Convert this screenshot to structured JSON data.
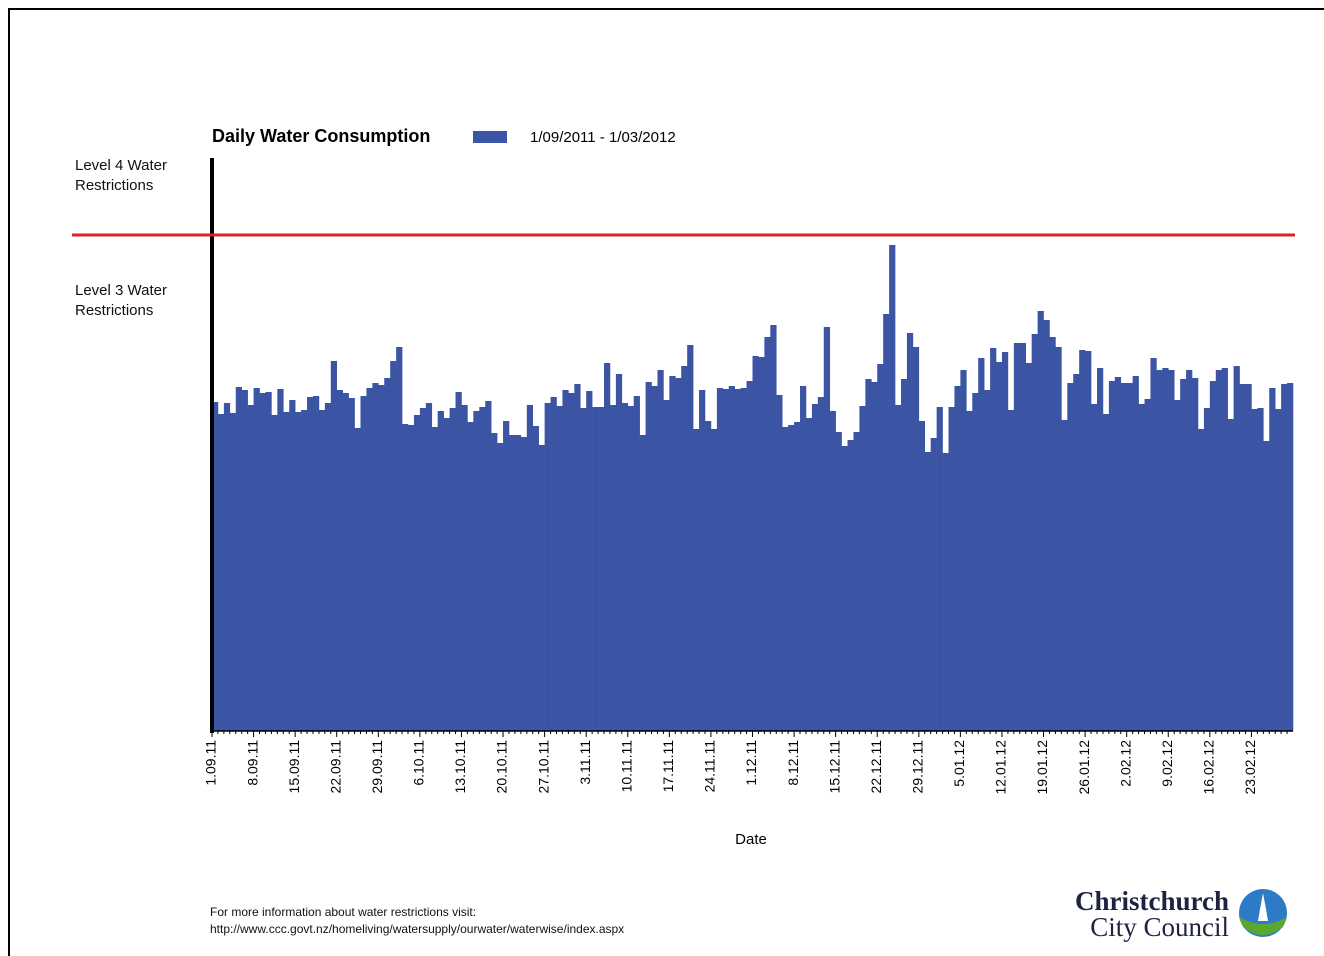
{
  "chart_data": {
    "type": "bar",
    "title": "Daily Water Consumption",
    "x_label": "Date",
    "series": [
      {
        "name": "1/09/2011 - 1/03/2012",
        "color": "#3c54a4",
        "values": [
          329,
          317,
          328,
          318,
          344,
          341,
          326,
          343,
          338,
          339,
          316,
          342,
          319,
          331,
          319,
          321,
          334,
          335,
          321,
          328,
          370,
          341,
          338,
          333,
          303,
          335,
          343,
          348,
          346,
          353,
          370,
          384,
          307,
          306,
          316,
          323,
          328,
          304,
          320,
          313,
          323,
          339,
          326,
          309,
          320,
          324,
          330,
          298,
          288,
          310,
          296,
          296,
          294,
          326,
          305,
          286,
          328,
          334,
          325,
          341,
          338,
          347,
          323,
          340,
          324,
          324,
          368,
          326,
          357,
          328,
          325,
          335,
          296,
          349,
          345,
          361,
          331,
          355,
          353,
          365,
          386,
          302,
          341,
          310,
          302,
          343,
          342,
          345,
          342,
          343,
          350,
          375,
          374,
          394,
          406,
          336,
          304,
          306,
          309,
          345,
          313,
          327,
          334,
          404,
          320,
          299,
          285,
          291,
          299,
          325,
          352,
          349,
          367,
          417,
          486,
          326,
          352,
          398,
          384,
          310,
          279,
          293,
          324,
          278,
          324,
          345,
          361,
          320,
          338,
          373,
          341,
          383,
          369,
          379,
          321,
          388,
          388,
          368,
          397,
          420,
          411,
          394,
          384,
          311,
          348,
          357,
          381,
          380,
          327,
          363,
          317,
          350,
          354,
          348,
          348,
          355,
          327,
          332,
          373,
          361,
          363,
          361,
          331,
          352,
          361,
          353,
          302,
          323,
          350,
          361,
          363,
          312,
          365,
          347,
          347,
          322,
          323,
          290,
          343,
          322,
          347,
          348
        ]
      }
    ],
    "categories": [
      "1.09.11",
      null,
      null,
      null,
      null,
      null,
      null,
      "8.09.11",
      null,
      null,
      null,
      null,
      null,
      null,
      "15.09.11",
      null,
      null,
      null,
      null,
      null,
      null,
      "22.09.11",
      null,
      null,
      null,
      null,
      null,
      null,
      "29.09.11",
      null,
      null,
      null,
      null,
      null,
      null,
      "6.10.11",
      null,
      null,
      null,
      null,
      null,
      null,
      "13.10.11",
      null,
      null,
      null,
      null,
      null,
      null,
      "20.10.11",
      null,
      null,
      null,
      null,
      null,
      null,
      "27.10.11",
      null,
      null,
      null,
      null,
      null,
      null,
      "3.11.11",
      null,
      null,
      null,
      null,
      null,
      null,
      "10.11.11",
      null,
      null,
      null,
      null,
      null,
      null,
      "17.11.11",
      null,
      null,
      null,
      null,
      null,
      null,
      "24.11.11",
      null,
      null,
      null,
      null,
      null,
      null,
      "1.12.11",
      null,
      null,
      null,
      null,
      null,
      null,
      "8.12.11",
      null,
      null,
      null,
      null,
      null,
      null,
      "15.12.11",
      null,
      null,
      null,
      null,
      null,
      null,
      "22.12.11",
      null,
      null,
      null,
      null,
      null,
      null,
      "29.12.11",
      null,
      null,
      null,
      null,
      null,
      null,
      "5.01.12",
      null,
      null,
      null,
      null,
      null,
      null,
      "12.01.12",
      null,
      null,
      null,
      null,
      null,
      null,
      "19.01.12",
      null,
      null,
      null,
      null,
      null,
      null,
      "26.01.12",
      null,
      null,
      null,
      null,
      null,
      null,
      "2.02.12",
      null,
      null,
      null,
      null,
      null,
      null,
      "9.02.12",
      null,
      null,
      null,
      null,
      null,
      null,
      "16.02.12",
      null,
      null,
      null,
      null,
      null,
      null,
      "23.02.12",
      null,
      null,
      null,
      null,
      null,
      null
    ],
    "ylim": [
      0,
      573
    ],
    "reference_line": {
      "value": 496,
      "color": "#e02020"
    },
    "annotations": [
      "Level 4 Water Restrictions",
      "Level 3 Water Restrictions"
    ]
  },
  "footer": {
    "text": "For more information about water restrictions visit:",
    "url": "http://www.ccc.govt.nz/homeliving/watersupply/ourwater/waterwise/index.aspx"
  },
  "logo": {
    "line1": "Christchurch",
    "line2": "City Council"
  }
}
